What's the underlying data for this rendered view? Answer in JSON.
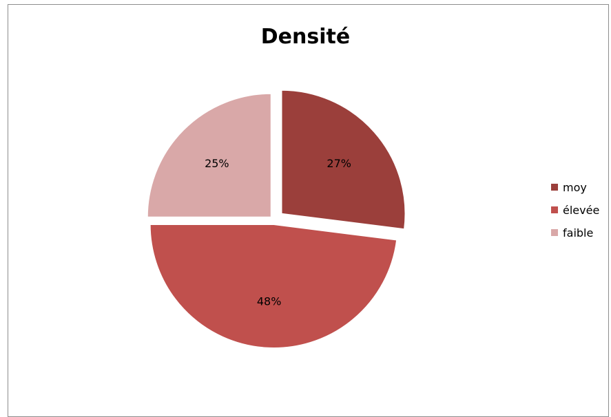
{
  "chart_data": {
    "type": "pie",
    "title": "Densité",
    "categories": [
      "moy",
      "élevée",
      "faible"
    ],
    "values": [
      27,
      48,
      25
    ],
    "labels": [
      "27%",
      "48%",
      "25%"
    ],
    "colors": [
      "#9b3f3b",
      "#c0504d",
      "#d9a8a8"
    ],
    "exploded": true,
    "legend": "right"
  }
}
